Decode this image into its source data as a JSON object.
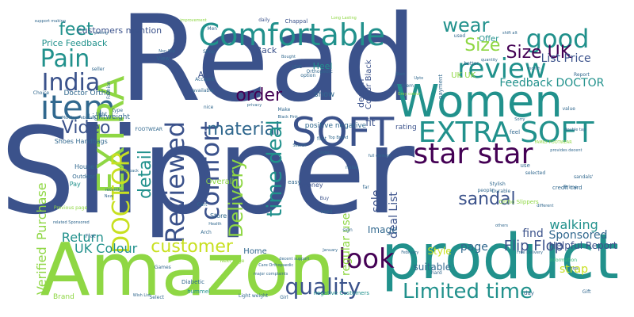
{
  "palette": {
    "deep_purple": "#440154",
    "indigo": "#3b528b",
    "blue": "#31688e",
    "teal": "#21918c",
    "green": "#35b779",
    "lime": "#8fd744",
    "yellow": "#c8e020"
  },
  "words": [
    {
      "text": "Read",
      "size": 150,
      "color": "indigo",
      "v": false
    },
    {
      "text": "Slipper",
      "size": 150,
      "color": "indigo",
      "v": false
    },
    {
      "text": "Amazon",
      "size": 92,
      "color": "lime",
      "v": false
    },
    {
      "text": "product",
      "size": 78,
      "color": "teal",
      "v": false
    },
    {
      "text": "Women",
      "size": 56,
      "color": "teal",
      "v": false
    },
    {
      "text": "Comfortable",
      "size": 38,
      "color": "teal",
      "v": false
    },
    {
      "text": "item",
      "size": 42,
      "color": "blue",
      "v": false
    },
    {
      "text": "EXTRA",
      "size": 46,
      "color": "lime",
      "v": true
    },
    {
      "text": "SOFT",
      "size": 50,
      "color": "indigo",
      "v": false
    },
    {
      "text": "EXTRA SOFT",
      "size": 36,
      "color": "teal",
      "v": false
    },
    {
      "text": "star star",
      "size": 36,
      "color": "deep_purple",
      "v": false
    },
    {
      "text": "review",
      "size": 34,
      "color": "teal",
      "v": false
    },
    {
      "text": "good",
      "size": 32,
      "color": "teal",
      "v": false
    },
    {
      "text": "India",
      "size": 30,
      "color": "indigo",
      "v": false
    },
    {
      "text": "Pain",
      "size": 30,
      "color": "teal",
      "v": false
    },
    {
      "text": "DOCTOR",
      "size": 30,
      "color": "yellow",
      "v": true
    },
    {
      "text": "Reviewed",
      "size": 32,
      "color": "indigo",
      "v": true
    },
    {
      "text": "comfort",
      "size": 32,
      "color": "indigo",
      "v": true
    },
    {
      "text": "look",
      "size": 34,
      "color": "deep_purple",
      "v": false
    },
    {
      "text": "quality",
      "size": 28,
      "color": "indigo",
      "v": false
    },
    {
      "text": "Limited time",
      "size": 26,
      "color": "teal",
      "v": false
    },
    {
      "text": "customer",
      "size": 22,
      "color": "yellow",
      "v": false
    },
    {
      "text": "material",
      "size": 22,
      "color": "blue",
      "v": false
    },
    {
      "text": "time deal",
      "size": 26,
      "color": "teal",
      "v": true
    },
    {
      "text": "Delivery",
      "size": 24,
      "color": "lime",
      "v": true
    },
    {
      "text": "Video",
      "size": 22,
      "color": "indigo",
      "v": false
    },
    {
      "text": "detail",
      "size": 22,
      "color": "teal",
      "v": true
    },
    {
      "text": "order",
      "size": 22,
      "color": "deep_purple",
      "v": false
    },
    {
      "text": "feet",
      "size": 22,
      "color": "teal",
      "v": false
    },
    {
      "text": "wear",
      "size": 24,
      "color": "teal",
      "v": false
    },
    {
      "text": "Size UK",
      "size": 22,
      "color": "deep_purple",
      "v": false
    },
    {
      "text": "Size",
      "size": 22,
      "color": "lime",
      "v": false
    },
    {
      "text": "sandal",
      "size": 22,
      "color": "indigo",
      "v": false
    },
    {
      "text": "walking",
      "size": 16,
      "color": "teal",
      "v": false
    },
    {
      "text": "Flip Flop",
      "size": 18,
      "color": "indigo",
      "v": false
    },
    {
      "text": "UK Colour",
      "size": 16,
      "color": "teal",
      "v": false
    },
    {
      "text": "Return",
      "size": 16,
      "color": "teal",
      "v": false
    },
    {
      "text": "Purchase",
      "size": 16,
      "color": "lime",
      "v": true
    },
    {
      "text": "Verified",
      "size": 16,
      "color": "lime",
      "v": true
    },
    {
      "text": "Feedback DOCTOR",
      "size": 14,
      "color": "teal",
      "v": false
    },
    {
      "text": "List Price",
      "size": 14,
      "color": "indigo",
      "v": false
    },
    {
      "text": "Sponsored",
      "size": 14,
      "color": "blue",
      "v": false
    },
    {
      "text": "page",
      "size": 14,
      "color": "blue",
      "v": false
    },
    {
      "text": "strap",
      "size": 14,
      "color": "yellow",
      "v": false
    },
    {
      "text": "Style",
      "size": 12,
      "color": "yellow",
      "v": false
    },
    {
      "text": "find",
      "size": 14,
      "color": "indigo",
      "v": false
    },
    {
      "text": "sole",
      "size": 14,
      "color": "indigo",
      "v": true
    },
    {
      "text": "regular use",
      "size": 14,
      "color": "lime",
      "v": true
    },
    {
      "text": "deal List",
      "size": 14,
      "color": "indigo",
      "v": true
    },
    {
      "text": "Image",
      "size": 12,
      "color": "blue",
      "v": false
    },
    {
      "text": "suitable",
      "size": 12,
      "color": "blue",
      "v": false
    },
    {
      "text": "Helpful Report",
      "size": 12,
      "color": "indigo",
      "v": false
    },
    {
      "text": "Price Feedback",
      "size": 11,
      "color": "teal",
      "v": false
    },
    {
      "text": "customers mention",
      "size": 11,
      "color": "indigo",
      "v": false
    },
    {
      "text": "Heel",
      "size": 11,
      "color": "teal",
      "v": false
    },
    {
      "text": "design",
      "size": 11,
      "color": "indigo",
      "v": true
    },
    {
      "text": "Colour Black",
      "size": 10,
      "color": "indigo",
      "v": true
    },
    {
      "text": "Doctor Ortho",
      "size": 9,
      "color": "blue",
      "v": false
    },
    {
      "text": "Lightweight",
      "size": 9,
      "color": "blue",
      "v": false
    },
    {
      "text": "Shoes Handbags",
      "size": 8,
      "color": "blue",
      "v": false
    },
    {
      "text": "positive negative",
      "size": 9,
      "color": "blue",
      "v": false
    },
    {
      "text": "Add",
      "size": 11,
      "color": "indigo",
      "v": false
    },
    {
      "text": "show",
      "size": 10,
      "color": "blue",
      "v": false
    },
    {
      "text": "Back",
      "size": 11,
      "color": "indigo",
      "v": false
    },
    {
      "text": "Overall",
      "size": 10,
      "color": "lime",
      "v": false
    },
    {
      "text": "fit",
      "size": 12,
      "color": "indigo",
      "v": false
    },
    {
      "text": "rating",
      "size": 9,
      "color": "indigo",
      "v": false
    },
    {
      "text": "Offer",
      "size": 10,
      "color": "teal",
      "v": false
    },
    {
      "text": "UK UK",
      "size": 10,
      "color": "lime",
      "v": false
    },
    {
      "text": "Home",
      "size": 10,
      "color": "blue",
      "v": false
    },
    {
      "text": "House",
      "size": 8,
      "color": "blue",
      "v": false
    },
    {
      "text": "Outdoor",
      "size": 7,
      "color": "blue",
      "v": false
    },
    {
      "text": "Pay",
      "size": 8,
      "color": "teal",
      "v": false
    },
    {
      "text": "money",
      "size": 8,
      "color": "indigo",
      "v": false
    },
    {
      "text": "Store",
      "size": 8,
      "color": "blue",
      "v": false
    },
    {
      "text": "Flat",
      "size": 7,
      "color": "blue",
      "v": false
    },
    {
      "text": "Brand",
      "size": 9,
      "color": "lime",
      "v": false
    },
    {
      "text": "Games",
      "size": 6,
      "color": "blue",
      "v": false
    },
    {
      "text": "Diabetic",
      "size": 7,
      "color": "blue",
      "v": false
    },
    {
      "text": "Select",
      "size": 6,
      "color": "blue",
      "v": false
    },
    {
      "text": "hummel",
      "size": 7,
      "color": "teal",
      "v": false
    },
    {
      "text": "Light weight",
      "size": 6,
      "color": "blue",
      "v": false
    },
    {
      "text": "negative Customers",
      "size": 7,
      "color": "teal",
      "v": false
    },
    {
      "text": "day",
      "size": 7,
      "color": "blue",
      "v": false
    },
    {
      "text": "Chappal",
      "size": 7,
      "color": "indigo",
      "v": false
    },
    {
      "text": "daily",
      "size": 6,
      "color": "indigo",
      "v": false
    },
    {
      "text": "Fashion",
      "size": 6,
      "color": "blue",
      "v": true
    },
    {
      "text": "View",
      "size": 7,
      "color": "blue",
      "v": false
    },
    {
      "text": "Shop",
      "size": 6,
      "color": "blue",
      "v": false
    },
    {
      "text": "Account",
      "size": 6,
      "color": "blue",
      "v": false
    },
    {
      "text": "Orthopedic",
      "size": 6,
      "color": "blue",
      "v": false
    },
    {
      "text": "Make",
      "size": 6,
      "color": "blue",
      "v": false
    },
    {
      "text": "Black Pink",
      "size": 5,
      "color": "blue",
      "v": false
    },
    {
      "text": "payment",
      "size": 7,
      "color": "blue",
      "v": true
    },
    {
      "text": "better",
      "size": 6,
      "color": "blue",
      "v": false
    },
    {
      "text": "credit card",
      "size": 7,
      "color": "blue",
      "v": false
    },
    {
      "text": "Stylish",
      "size": 6,
      "color": "blue",
      "v": false
    },
    {
      "text": "Durable",
      "size": 6,
      "color": "blue",
      "v": false
    },
    {
      "text": "Ortho Slippers",
      "size": 7,
      "color": "lime",
      "v": false
    },
    {
      "text": "Prime",
      "size": 6,
      "color": "blue",
      "v": false
    },
    {
      "text": "feel",
      "size": 7,
      "color": "blue",
      "v": false
    },
    {
      "text": "value",
      "size": 6,
      "color": "blue",
      "v": false
    },
    {
      "text": "need",
      "size": 6,
      "color": "blue",
      "v": false
    },
    {
      "text": "Buy",
      "size": 6,
      "color": "indigo",
      "v": false
    },
    {
      "text": "sign",
      "size": 6,
      "color": "blue",
      "v": false
    },
    {
      "text": "hard",
      "size": 6,
      "color": "blue",
      "v": false
    },
    {
      "text": "Previous page",
      "size": 6,
      "color": "lime",
      "v": false
    },
    {
      "text": "Next page",
      "size": 6,
      "color": "lime",
      "v": false
    },
    {
      "text": "information",
      "size": 6,
      "color": "green",
      "v": false
    },
    {
      "text": "FOOTWEAR",
      "size": 6,
      "color": "blue",
      "v": false
    },
    {
      "text": "FAMILY FOOTWEAR",
      "size": 5,
      "color": "lime",
      "v": false
    },
    {
      "text": "Monday February",
      "size": 5,
      "color": "blue",
      "v": false
    },
    {
      "text": "improvement",
      "size": 5,
      "color": "lime",
      "v": false
    },
    {
      "text": "problem",
      "size": 6,
      "color": "blue",
      "v": false
    },
    {
      "text": "available",
      "size": 6,
      "color": "blue",
      "v": false
    },
    {
      "text": "nice",
      "size": 6,
      "color": "blue",
      "v": false
    },
    {
      "text": "Men",
      "size": 6,
      "color": "blue",
      "v": false
    },
    {
      "text": "tight",
      "size": 6,
      "color": "blue",
      "v": false
    },
    {
      "text": "type",
      "size": 6,
      "color": "blue",
      "v": false
    },
    {
      "text": "seller",
      "size": 6,
      "color": "blue",
      "v": false
    },
    {
      "text": "Choice",
      "size": 6,
      "color": "blue",
      "v": false
    },
    {
      "text": "easy",
      "size": 7,
      "color": "blue",
      "v": false
    },
    {
      "text": "people",
      "size": 6,
      "color": "blue",
      "v": false
    },
    {
      "text": "use",
      "size": 7,
      "color": "blue",
      "v": false
    },
    {
      "text": "Search",
      "size": 5,
      "color": "blue",
      "v": false
    },
    {
      "text": "Cart",
      "size": 6,
      "color": "blue",
      "v": false
    },
    {
      "text": "option",
      "size": 6,
      "color": "blue",
      "v": false
    },
    {
      "text": "privacy",
      "size": 5,
      "color": "blue",
      "v": false
    },
    {
      "text": "foot",
      "size": 6,
      "color": "blue",
      "v": false
    },
    {
      "text": "selected",
      "size": 6,
      "color": "blue",
      "v": false
    },
    {
      "text": "shift alt",
      "size": 5,
      "color": "blue",
      "v": false
    },
    {
      "text": "sandals'",
      "size": 6,
      "color": "blue",
      "v": false
    },
    {
      "text": "Gift",
      "size": 6,
      "color": "blue",
      "v": false
    },
    {
      "text": "Girl",
      "size": 6,
      "color": "blue",
      "v": false
    },
    {
      "text": "Arch",
      "size": 6,
      "color": "blue",
      "v": false
    },
    {
      "text": "Health",
      "size": 5,
      "color": "blue",
      "v": false
    },
    {
      "text": "noise",
      "size": 6,
      "color": "blue",
      "v": false
    },
    {
      "text": "far",
      "size": 6,
      "color": "blue",
      "v": false
    },
    {
      "text": "Report",
      "size": 6,
      "color": "blue",
      "v": false
    },
    {
      "text": "Free Delivery",
      "size": 5,
      "color": "blue",
      "v": false
    },
    {
      "text": "different",
      "size": 5,
      "color": "blue",
      "v": false
    },
    {
      "text": "provides decent",
      "size": 5,
      "color": "blue",
      "v": false
    },
    {
      "text": "Wish List",
      "size": 5,
      "color": "blue",
      "v": false
    },
    {
      "text": "ships",
      "size": 5,
      "color": "blue",
      "v": false
    },
    {
      "text": "major complaints",
      "size": 5,
      "color": "blue",
      "v": false
    },
    {
      "text": "Care Orthopaedic",
      "size": 5,
      "color": "blue",
      "v": false
    },
    {
      "text": "decent support",
      "size": 5,
      "color": "blue",
      "v": false
    },
    {
      "text": "January",
      "size": 5,
      "color": "blue",
      "v": false
    },
    {
      "text": "February",
      "size": 5,
      "color": "blue",
      "v": false
    },
    {
      "text": "Start",
      "size": 5,
      "color": "blue",
      "v": false
    },
    {
      "text": "Upto",
      "size": 5,
      "color": "blue",
      "v": false
    },
    {
      "text": "Grey colour",
      "size": 5,
      "color": "lime",
      "v": false
    },
    {
      "text": "Cashback",
      "size": 5,
      "color": "blue",
      "v": false
    },
    {
      "text": "related Sponsored",
      "size": 5,
      "color": "blue",
      "v": false
    },
    {
      "text": "support making",
      "size": 5,
      "color": "blue",
      "v": false
    },
    {
      "text": "full content",
      "size": 5,
      "color": "blue",
      "v": false
    },
    {
      "text": "Non Slip",
      "size": 5,
      "color": "blue",
      "v": false
    },
    {
      "text": "Sorry",
      "size": 5,
      "color": "blue",
      "v": false
    },
    {
      "text": "used",
      "size": 6,
      "color": "blue",
      "v": false
    },
    {
      "text": "quantity",
      "size": 5,
      "color": "blue",
      "v": false
    },
    {
      "text": "recently",
      "size": 5,
      "color": "blue",
      "v": false
    },
    {
      "text": "Top Brand",
      "size": 5,
      "color": "blue",
      "v": false
    },
    {
      "text": "Long Lasting",
      "size": 5,
      "color": "lime",
      "v": false
    },
    {
      "text": "LEVE",
      "size": 5,
      "color": "blue",
      "v": false
    },
    {
      "text": "others",
      "size": 5,
      "color": "blue",
      "v": false
    },
    {
      "text": "New",
      "size": 5,
      "color": "blue",
      "v": false
    },
    {
      "text": "poking",
      "size": 5,
      "color": "blue",
      "v": false
    },
    {
      "text": "double tap",
      "size": 5,
      "color": "blue",
      "v": false
    },
    {
      "text": "month",
      "size": 5,
      "color": "blue",
      "v": false
    },
    {
      "text": "Sliders",
      "size": 5,
      "color": "blue",
      "v": false
    },
    {
      "text": "Bought",
      "size": 5,
      "color": "blue",
      "v": false
    }
  ]
}
